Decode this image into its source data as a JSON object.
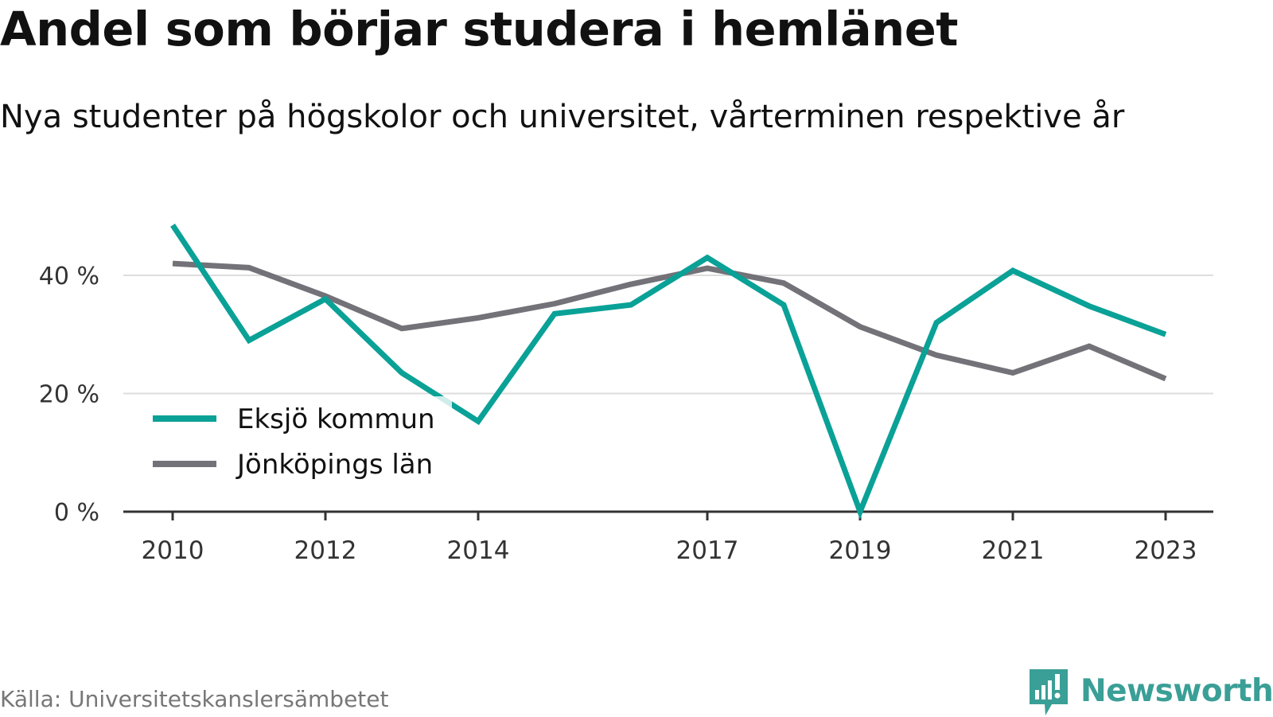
{
  "colors": {
    "eksjo": "#0aa197",
    "jonkoping": "#737278",
    "grid": "#dddddd",
    "axis": "#333333",
    "brand": "#3a9f96"
  },
  "brand": {
    "name": "Newsworthy",
    "icon": "chart-bubble-icon"
  },
  "chart_data": {
    "type": "line",
    "title": "Andel som börjar studera i hemlänet",
    "subtitle": "Nya studenter på högskolor och universitet, vårterminen respektive år",
    "source": "Källa: Universitetskanslersämbetet",
    "x": [
      2010,
      2011,
      2012,
      2013,
      2014,
      2015,
      2016,
      2017,
      2018,
      2019,
      2020,
      2021,
      2022,
      2023
    ],
    "xticks": [
      "2010",
      "2012",
      "2014",
      "2017",
      "2019",
      "2021",
      "2023"
    ],
    "yticks": [
      "0 %",
      "20 %",
      "40 %"
    ],
    "ylim": [
      0,
      50
    ],
    "grid": true,
    "legend_position": "bottom-left",
    "series": [
      {
        "name": "Eksjö kommun",
        "color": "#0aa197",
        "values": [
          48.5,
          29.0,
          36.0,
          23.5,
          15.3,
          33.5,
          35.0,
          43.0,
          35.0,
          0.0,
          32.0,
          40.8,
          34.8,
          30.0
        ]
      },
      {
        "name": "Jönköpings län",
        "color": "#737278",
        "values": [
          42.0,
          41.3,
          36.5,
          31.0,
          32.8,
          35.2,
          38.5,
          41.2,
          38.7,
          31.3,
          26.5,
          23.5,
          28.0,
          22.5
        ]
      }
    ]
  }
}
